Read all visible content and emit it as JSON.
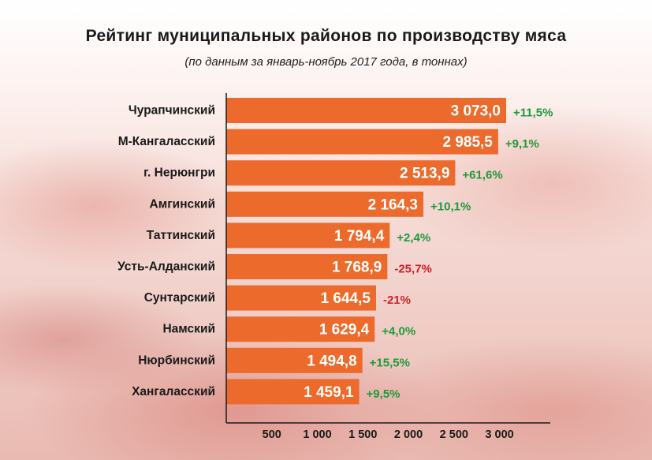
{
  "title": "Рейтинг муниципальных районов по производству мяса",
  "subtitle": "(по данным за январь-ноябрь 2017 года, в тоннах)",
  "chart_data": {
    "type": "bar",
    "orientation": "horizontal",
    "title": "Рейтинг муниципальных районов по производству мяса",
    "subtitle": "(по данным за январь-ноябрь 2017 года, в тоннах)",
    "categories": [
      "Чурапчинский",
      "М-Кангаласский",
      "г. Нерюнгри",
      "Амгинский",
      "Таттинский",
      "Усть-Алданский",
      "Сунтарский",
      "Намский",
      "Нюрбинский",
      "Хангаласский"
    ],
    "values": [
      3073.0,
      2985.5,
      2513.9,
      2164.3,
      1794.4,
      1768.9,
      1644.5,
      1629.4,
      1494.8,
      1459.1
    ],
    "value_labels": [
      "3 073,0",
      "2 985,5",
      "2 513,9",
      "2 164,3",
      "1 794,4",
      "1 768,9",
      "1 644,5",
      "1 629,4",
      "1 494,8",
      "1 459,1"
    ],
    "changes": [
      "+11,5%",
      "+9,1%",
      "+61,6%",
      "+10,1%",
      "+2,4%",
      "-25,7%",
      "-21%",
      "+4,0%",
      "+15,5%",
      "+9,5%"
    ],
    "x_ticks": [
      500,
      1000,
      1500,
      2000,
      2500,
      3000
    ],
    "x_tick_labels": [
      "500",
      "1 000",
      "1 500",
      "2 000",
      "2 500",
      "3 000"
    ],
    "xlim": [
      0,
      3500
    ],
    "grid": false,
    "colors": {
      "bar": "#ec6a2b",
      "positive": "#1f9a3a",
      "negative": "#d0202a",
      "axis": "#1a1a1a"
    }
  }
}
